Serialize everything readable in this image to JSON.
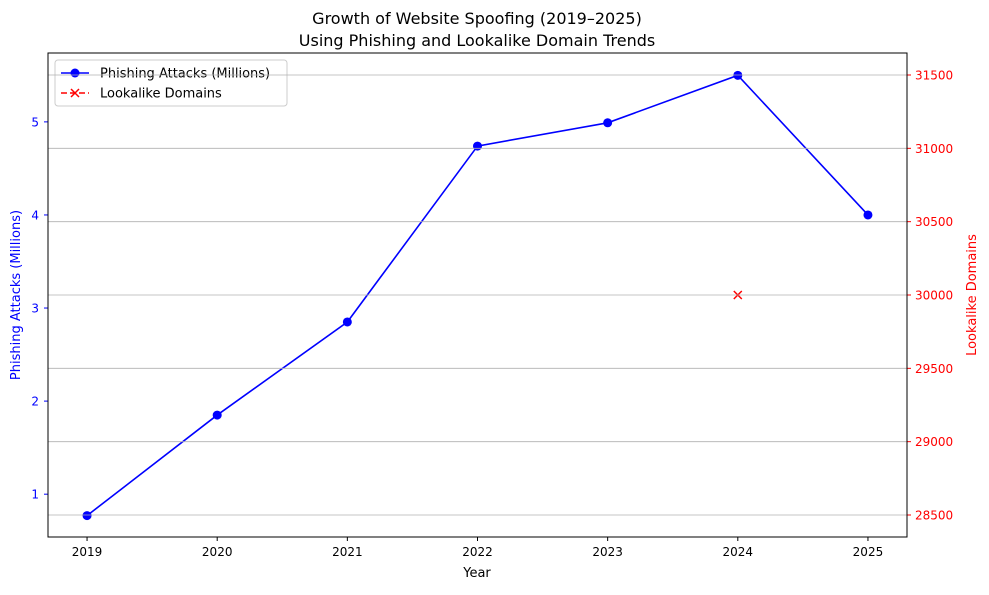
{
  "chart_data": {
    "type": "line",
    "title": "Growth of Website Spoofing (2019–2025)",
    "subtitle": "Using Phishing and Lookalike Domain Trends",
    "xlabel": "Year",
    "ylabel_left": "Phishing Attacks (Millions)",
    "ylabel_right": "Lookalike Domains",
    "x": [
      2019,
      2020,
      2021,
      2022,
      2023,
      2024,
      2025
    ],
    "xlim": [
      2018.7,
      2025.3
    ],
    "ylim_left": [
      0.54,
      5.74
    ],
    "ylim_right": [
      28350,
      31650
    ],
    "xticks": [
      "2019",
      "2020",
      "2021",
      "2022",
      "2023",
      "2024",
      "2025"
    ],
    "yticks_left": [
      "1",
      "2",
      "3",
      "4",
      "5"
    ],
    "yticks_right": [
      "28500",
      "29000",
      "29500",
      "30000",
      "30500",
      "31000",
      "31500"
    ],
    "grid": "horizontal, right axis",
    "legend_position": "upper-left",
    "series": [
      {
        "name": "Phishing Attacks (Millions)",
        "axis": "left",
        "color": "#0000ff",
        "marker": "circle",
        "linestyle": "solid",
        "values": [
          0.77,
          1.85,
          2.85,
          4.74,
          4.99,
          5.5,
          4.0
        ]
      },
      {
        "name": "Lookalike Domains",
        "axis": "right",
        "color": "#ff0000",
        "marker": "x",
        "linestyle": "dashed",
        "values": [
          null,
          null,
          null,
          null,
          null,
          30000,
          null
        ]
      }
    ]
  }
}
